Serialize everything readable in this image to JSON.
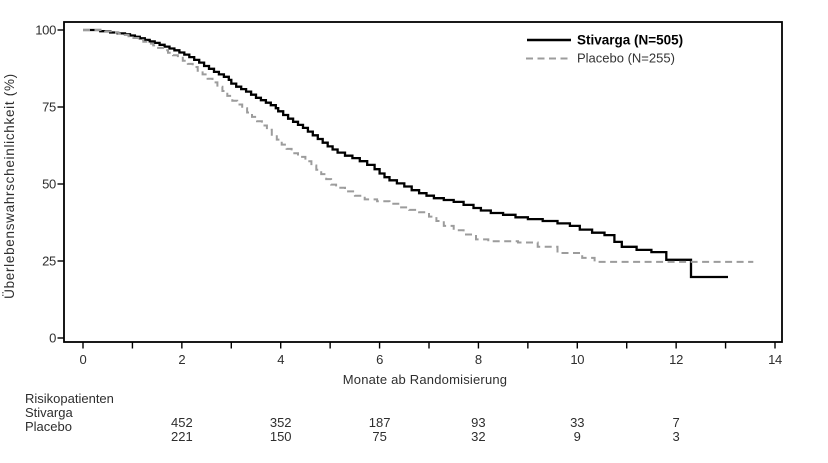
{
  "chart_data": {
    "type": "line",
    "subtype": "kaplan-meier-step",
    "title": "",
    "xlabel": "Monate ab Randomisierung",
    "ylabel": "Überlebenswahrscheinlichkeit (%)",
    "xlim": [
      0,
      14
    ],
    "ylim": [
      0,
      100
    ],
    "grid": false,
    "legend_position": "top-right-inside",
    "x_axis": {
      "tick_values": [
        0,
        2,
        4,
        6,
        8,
        10,
        12,
        14
      ],
      "tick_labels": [
        "0",
        "2",
        "4",
        "6",
        "8",
        "10",
        "12",
        "14"
      ],
      "all_tick_months": [
        0,
        1,
        2,
        3,
        4,
        5,
        6,
        7,
        8,
        9,
        10,
        11,
        12,
        13,
        14
      ]
    },
    "y_axis": {
      "tick_values": [
        0,
        25,
        50,
        75,
        100
      ],
      "tick_labels_top_to_bottom": [
        "100",
        "75",
        "50",
        "25",
        "0"
      ]
    },
    "series": [
      {
        "name": "Stivarga (N=505)",
        "color": "#000000",
        "style": "solid",
        "stroke_width": 2.3,
        "end_time": 13.05,
        "points": [
          [
            0,
            100
          ],
          [
            0.35,
            99.6
          ],
          [
            0.55,
            99.2
          ],
          [
            0.7,
            98.9
          ],
          [
            0.85,
            98.6
          ],
          [
            0.95,
            98.2
          ],
          [
            1.05,
            97.8
          ],
          [
            1.15,
            97.3
          ],
          [
            1.25,
            96.8
          ],
          [
            1.35,
            96.3
          ],
          [
            1.45,
            95.8
          ],
          [
            1.55,
            95.2
          ],
          [
            1.65,
            94.6
          ],
          [
            1.75,
            94
          ],
          [
            1.85,
            93.4
          ],
          [
            1.95,
            92.7
          ],
          [
            2.05,
            92
          ],
          [
            2.15,
            91.2
          ],
          [
            2.25,
            90.3
          ],
          [
            2.35,
            89.4
          ],
          [
            2.45,
            88.3
          ],
          [
            2.55,
            87.4
          ],
          [
            2.65,
            86.4
          ],
          [
            2.75,
            85.6
          ],
          [
            2.85,
            84.8
          ],
          [
            2.95,
            83.8
          ],
          [
            3.0,
            82.6
          ],
          [
            3.1,
            81.6
          ],
          [
            3.2,
            80.8
          ],
          [
            3.3,
            80
          ],
          [
            3.4,
            79
          ],
          [
            3.5,
            78
          ],
          [
            3.6,
            77.2
          ],
          [
            3.7,
            76.4
          ],
          [
            3.8,
            75.6
          ],
          [
            3.9,
            74.6
          ],
          [
            3.95,
            73.6
          ],
          [
            4.05,
            72.4
          ],
          [
            4.15,
            71.2
          ],
          [
            4.25,
            70.2
          ],
          [
            4.35,
            69.2
          ],
          [
            4.45,
            68.2
          ],
          [
            4.55,
            67
          ],
          [
            4.65,
            65.8
          ],
          [
            4.75,
            64.6
          ],
          [
            4.85,
            63.4
          ],
          [
            4.95,
            62.2
          ],
          [
            5.05,
            61.2
          ],
          [
            5.15,
            60.2
          ],
          [
            5.3,
            59.2
          ],
          [
            5.45,
            58.4
          ],
          [
            5.6,
            57.4
          ],
          [
            5.75,
            56.2
          ],
          [
            5.9,
            54.8
          ],
          [
            6.0,
            53.4
          ],
          [
            6.1,
            52.2
          ],
          [
            6.2,
            51.2
          ],
          [
            6.35,
            50.2
          ],
          [
            6.5,
            49.2
          ],
          [
            6.65,
            48
          ],
          [
            6.8,
            47
          ],
          [
            6.95,
            46.2
          ],
          [
            7.1,
            45.4
          ],
          [
            7.3,
            44.8
          ],
          [
            7.5,
            44.2
          ],
          [
            7.7,
            43.2
          ],
          [
            7.9,
            42.2
          ],
          [
            8.05,
            41.4
          ],
          [
            8.25,
            40.6
          ],
          [
            8.5,
            40
          ],
          [
            8.75,
            39.2
          ],
          [
            9.0,
            38.6
          ],
          [
            9.3,
            38
          ],
          [
            9.6,
            37.2
          ],
          [
            9.85,
            36.4
          ],
          [
            10.05,
            35.2
          ],
          [
            10.3,
            34.2
          ],
          [
            10.55,
            33.4
          ],
          [
            10.75,
            31.2
          ],
          [
            10.9,
            29.6
          ],
          [
            11.2,
            28.6
          ],
          [
            11.5,
            27.9
          ],
          [
            11.8,
            25.4
          ],
          [
            12.3,
            19.8
          ]
        ]
      },
      {
        "name": "Placebo (N=255)",
        "color": "#9c9c9c",
        "style": "dashed",
        "stroke_width": 2,
        "end_time": 13.56,
        "points": [
          [
            0,
            100
          ],
          [
            0.45,
            99.6
          ],
          [
            0.6,
            99.2
          ],
          [
            0.72,
            98.8
          ],
          [
            0.82,
            98.4
          ],
          [
            0.92,
            98
          ],
          [
            1.02,
            97.4
          ],
          [
            1.12,
            96.8
          ],
          [
            1.22,
            96.2
          ],
          [
            1.32,
            95.6
          ],
          [
            1.42,
            95
          ],
          [
            1.52,
            94.2
          ],
          [
            1.62,
            93.4
          ],
          [
            1.72,
            92.6
          ],
          [
            1.82,
            91.8
          ],
          [
            1.92,
            91
          ],
          [
            2.02,
            90
          ],
          [
            2.12,
            89
          ],
          [
            2.22,
            88
          ],
          [
            2.32,
            86.8
          ],
          [
            2.42,
            85.6
          ],
          [
            2.52,
            84.2
          ],
          [
            2.62,
            83
          ],
          [
            2.72,
            81.6
          ],
          [
            2.82,
            80.2
          ],
          [
            2.92,
            78.6
          ],
          [
            3.02,
            77
          ],
          [
            3.12,
            75.8
          ],
          [
            3.22,
            74.6
          ],
          [
            3.32,
            73.2
          ],
          [
            3.42,
            71.8
          ],
          [
            3.52,
            70.4
          ],
          [
            3.62,
            69
          ],
          [
            3.72,
            67.6
          ],
          [
            3.82,
            66
          ],
          [
            3.92,
            64.4
          ],
          [
            4.02,
            62.8
          ],
          [
            4.12,
            61.4
          ],
          [
            4.22,
            60
          ],
          [
            4.35,
            58.8
          ],
          [
            4.5,
            57.4
          ],
          [
            4.62,
            56
          ],
          [
            4.72,
            54.6
          ],
          [
            4.82,
            53.2
          ],
          [
            4.92,
            51.6
          ],
          [
            5.02,
            49.8
          ],
          [
            5.12,
            48.8
          ],
          [
            5.3,
            47.6
          ],
          [
            5.5,
            46.2
          ],
          [
            5.7,
            45
          ],
          [
            5.95,
            44.4
          ],
          [
            6.2,
            43.6
          ],
          [
            6.4,
            42.4
          ],
          [
            6.6,
            41.6
          ],
          [
            6.8,
            40.8
          ],
          [
            7.0,
            39.4
          ],
          [
            7.15,
            38
          ],
          [
            7.3,
            36.4
          ],
          [
            7.5,
            35
          ],
          [
            7.7,
            33.6
          ],
          [
            7.95,
            32
          ],
          [
            8.2,
            31.4
          ],
          [
            8.8,
            31
          ],
          [
            9.2,
            29.6
          ],
          [
            9.6,
            27.6
          ],
          [
            10.1,
            26
          ],
          [
            10.35,
            24.7
          ]
        ]
      }
    ],
    "risk_table": {
      "title": "Risikopatienten",
      "time_points": [
        2,
        4,
        6,
        8,
        10,
        12
      ],
      "rows": [
        {
          "label": "Stivarga",
          "counts": [
            "452",
            "352",
            "187",
            "93",
            "33",
            "7"
          ]
        },
        {
          "label": "Placebo",
          "counts": [
            "221",
            "150",
            "75",
            "32",
            "9",
            "3"
          ]
        }
      ]
    },
    "colors": {
      "stivarga": "#000000",
      "placebo": "#9c9c9c",
      "axis": "#000000",
      "text": "#2e2e2e",
      "background": "#ffffff"
    }
  }
}
